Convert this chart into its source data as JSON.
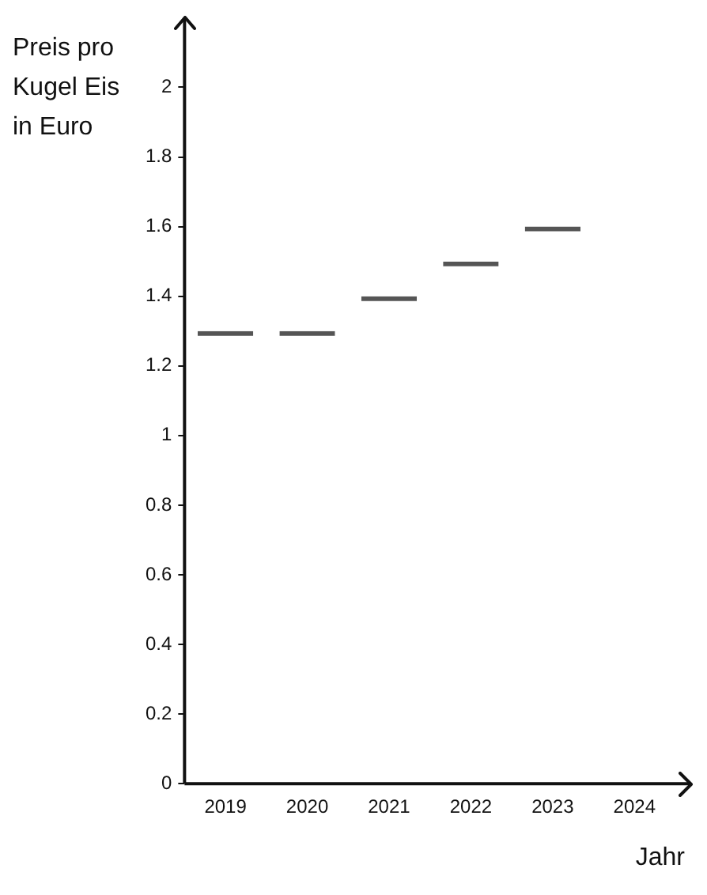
{
  "chart_data": {
    "type": "bar",
    "ylabel": "Preis pro Kugel Eis in Euro",
    "xlabel": "Jahr",
    "categories": [
      "2019",
      "2020",
      "2021",
      "2022",
      "2023",
      "2024"
    ],
    "values": [
      1.3,
      1.3,
      1.4,
      1.5,
      1.6,
      null
    ],
    "color": "#555555",
    "ylim": [
      0,
      2.2
    ],
    "yticks": [
      0,
      0.2,
      0.4,
      0.6,
      0.8,
      1,
      1.2,
      1.4,
      1.6,
      1.8,
      2
    ],
    "grid": false,
    "legend": false
  }
}
